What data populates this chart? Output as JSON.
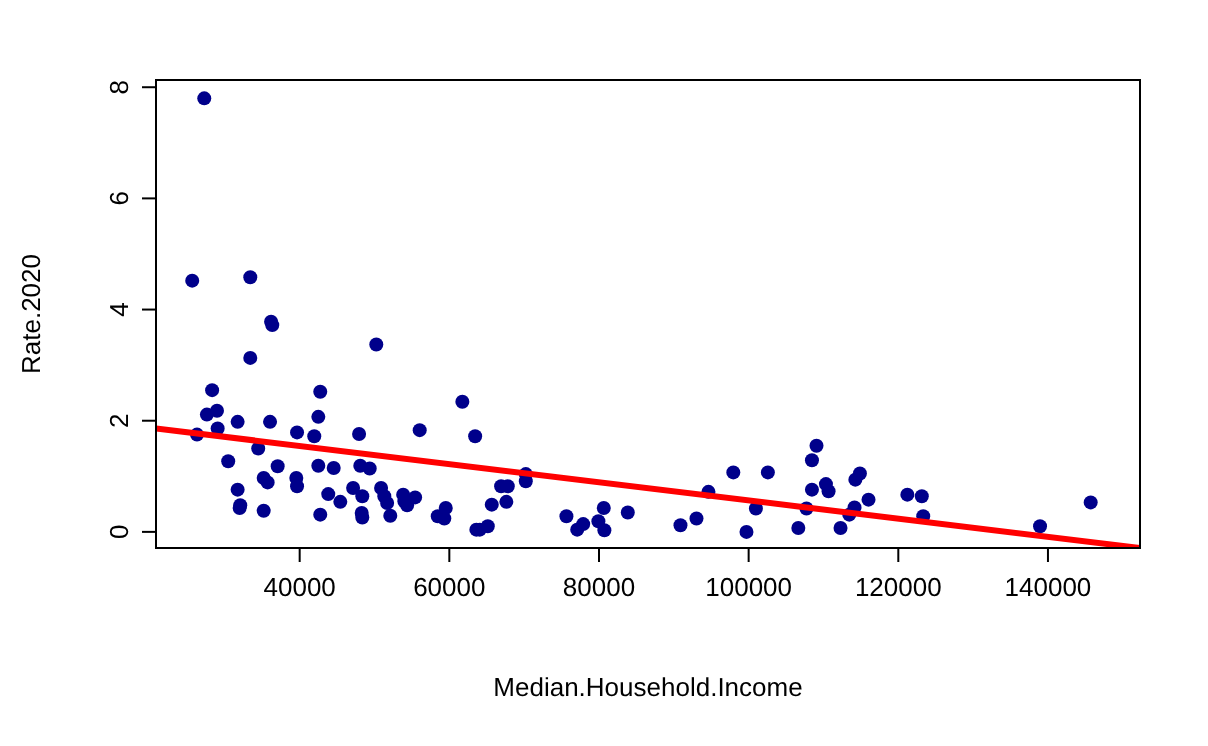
{
  "chart_data": {
    "type": "scatter",
    "xlabel": "Median.Household.Income",
    "ylabel": "Rate.2020",
    "xlim": [
      20800,
      152300
    ],
    "ylim": [
      -0.29,
      8.13
    ],
    "xticks": [
      40000,
      60000,
      80000,
      100000,
      120000,
      140000
    ],
    "yticks": [
      0,
      2,
      4,
      6,
      8
    ],
    "grid": false,
    "series": [
      {
        "color": "#00008b",
        "marker": "circle",
        "x": [
          27250,
          25640,
          33400,
          36180,
          36340,
          33400,
          50240,
          28300,
          42750,
          61740,
          27600,
          28950,
          42490,
          31710,
          36040,
          29040,
          26280,
          39650,
          41950,
          47940,
          56040,
          63450,
          34460,
          30450,
          37060,
          42490,
          44550,
          48100,
          49360,
          35190,
          35720,
          39550,
          39650,
          31710,
          32060,
          31980,
          35190,
          42750,
          43820,
          45430,
          47140,
          48370,
          48290,
          48370,
          50880,
          51310,
          51690,
          52110,
          53830,
          53990,
          54360,
          55430,
          58450,
          59330,
          59520,
          63610,
          64070,
          65140,
          65670,
          66920,
          67810,
          67620,
          70220,
          70220,
          75650,
          77090,
          77890,
          79920,
          80720,
          80640,
          83850,
          90890,
          93030,
          94630,
          97950,
          102570,
          99710,
          100970,
          106640,
          107730,
          109070,
          108460,
          108460,
          110330,
          110680,
          112280,
          113450,
          114150,
          114260,
          114870,
          116020,
          121210,
          123140,
          123330,
          138940,
          145710
        ],
        "values": [
          7.8,
          4.52,
          4.58,
          3.78,
          3.72,
          3.13,
          3.37,
          2.55,
          2.52,
          2.34,
          2.11,
          2.18,
          2.07,
          1.98,
          1.98,
          1.86,
          1.75,
          1.79,
          1.72,
          1.76,
          1.83,
          1.72,
          1.5,
          1.27,
          1.18,
          1.19,
          1.15,
          1.19,
          1.14,
          0.97,
          0.89,
          0.97,
          0.82,
          0.76,
          0.48,
          0.43,
          0.38,
          0.31,
          0.68,
          0.54,
          0.79,
          0.64,
          0.34,
          0.26,
          0.79,
          0.64,
          0.52,
          0.29,
          0.67,
          0.55,
          0.48,
          0.62,
          0.28,
          0.24,
          0.43,
          0.04,
          0.04,
          0.1,
          0.49,
          0.82,
          0.82,
          0.54,
          1.04,
          0.91,
          0.28,
          0.04,
          0.14,
          0.19,
          0.03,
          0.43,
          0.35,
          0.12,
          0.24,
          0.72,
          1.07,
          1.07,
          0.0,
          0.42,
          0.07,
          0.42,
          1.55,
          1.29,
          0.76,
          0.86,
          0.73,
          0.07,
          0.31,
          0.44,
          0.94,
          1.05,
          0.58,
          0.67,
          0.64,
          0.28,
          0.1,
          0.53
        ]
      },
      {
        "type": "line",
        "color": "#ff0000",
        "x": [
          20800,
          152300
        ],
        "values": [
          1.86,
          -0.29
        ],
        "marker": "none"
      }
    ]
  }
}
